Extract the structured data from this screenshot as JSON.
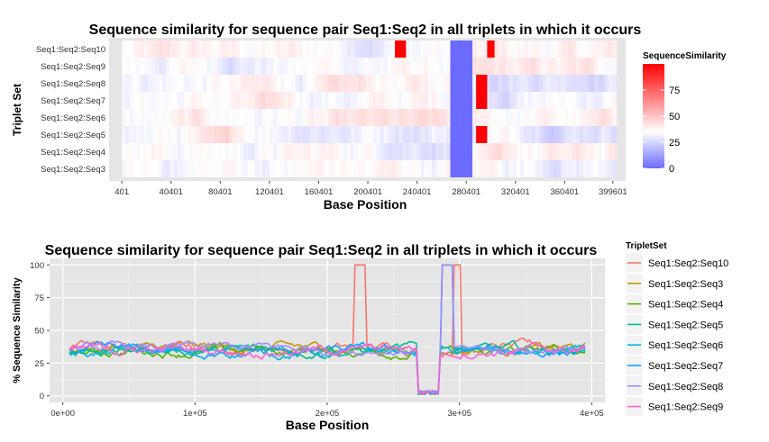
{
  "chart_data": [
    {
      "type": "heatmap",
      "title": "Sequence similarity for sequence pair Seq1:Seq2 in all triplets in which it occurs",
      "xlabel": "Base Position",
      "ylabel": "Triplet Set",
      "xlim": [
        -10000,
        410000
      ],
      "x_ticks": [
        401,
        40401,
        80401,
        120401,
        160401,
        200401,
        240401,
        280401,
        320401,
        360401,
        399601
      ],
      "rows": [
        "Seq1:Seq2:Seq10",
        "Seq1:Seq2:Seq9",
        "Seq1:Seq2:Seq8",
        "Seq1:Seq2:Seq7",
        "Seq1:Seq2:Seq6",
        "Seq1:Seq2:Seq5",
        "Seq1:Seq2:Seq4",
        "Seq1:Seq2:Seq3"
      ],
      "legend": {
        "title": "SequenceSimilarity",
        "ticks": [
          0,
          25,
          50,
          75
        ],
        "range": [
          0,
          100
        ],
        "colors": {
          "low": "#6b6bff",
          "mid": "#ffffff",
          "high": "#ff0000"
        },
        "midpoint": 35
      },
      "features": [
        {
          "row": "Seq1:Seq2:Seq10",
          "from": 220000,
          "to": 230000,
          "value": 100
        },
        {
          "row": "Seq1:Seq2:Seq10",
          "from": 295000,
          "to": 301000,
          "value": 100
        },
        {
          "row": "Seq1:Seq2:Seq8",
          "from": 287000,
          "to": 295000,
          "value": 100
        },
        {
          "row": "Seq1:Seq2:Seq7",
          "from": 287000,
          "to": 295000,
          "value": 100
        },
        {
          "row": "Seq1:Seq2:Seq5",
          "from": 287000,
          "to": 295000,
          "value": 100
        },
        {
          "row": "all",
          "from": 265000,
          "to": 285000,
          "value": 0
        }
      ]
    },
    {
      "type": "line",
      "title": "Sequence similarity for sequence pair Seq1:Seq2 in all triplets in which it occurs",
      "xlabel": "Base Position",
      "ylabel": "% Sequence Similarity",
      "xlim": [
        -10000,
        410000
      ],
      "ylim": [
        -5,
        105
      ],
      "x_ticks": [
        0,
        100000,
        200000,
        300000,
        400000
      ],
      "x_tick_labels": [
        "0e+00",
        "1e+05",
        "2e+05",
        "3e+05",
        "4e+05"
      ],
      "y_ticks": [
        0,
        25,
        50,
        75,
        100
      ],
      "legend_title": "TripletSet",
      "series": [
        {
          "name": "Seq1:Seq2:Seq10",
          "color": "#f8766d",
          "base": 37,
          "spikes": [
            [
              220000,
              230000,
              100
            ],
            [
              295000,
              301000,
              100
            ]
          ]
        },
        {
          "name": "Seq1:Seq2:Seq3",
          "color": "#c49a00",
          "base": 36,
          "spikes": []
        },
        {
          "name": "Seq1:Seq2:Seq4",
          "color": "#53b400",
          "base": 34,
          "spikes": []
        },
        {
          "name": "Seq1:Seq2:Seq5",
          "color": "#00c094",
          "base": 35,
          "spikes": [
            [
              287000,
              295000,
              100
            ]
          ]
        },
        {
          "name": "Seq1:Seq2:Seq6",
          "color": "#00b6eb",
          "base": 33,
          "spikes": []
        },
        {
          "name": "Seq1:Seq2:Seq7",
          "color": "#06a4ff",
          "base": 34,
          "spikes": [
            [
              287000,
              295000,
              100
            ]
          ]
        },
        {
          "name": "Seq1:Seq2:Seq8",
          "color": "#a58aff",
          "base": 36,
          "spikes": [
            [
              287000,
              295000,
              100
            ]
          ]
        },
        {
          "name": "Seq1:Seq2:Seq9",
          "color": "#fb61d7",
          "base": 35,
          "spikes": []
        }
      ],
      "dip": {
        "from": 268000,
        "to": 285000,
        "value": 1
      },
      "x_range": [
        5000,
        395000
      ]
    }
  ]
}
